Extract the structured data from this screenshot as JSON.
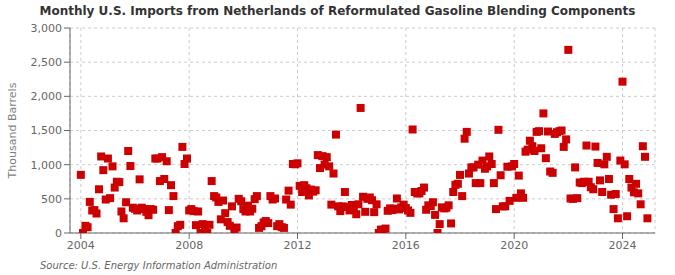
{
  "chart_data": {
    "type": "scatter",
    "title": "Monthly U.S. Imports from Netherlands of Reformulated Gasoline Blending Components",
    "ylabel": "Thousand Barrels",
    "annotations": [
      "Source: U.S. Energy Information Administration"
    ],
    "color": "#CC0000",
    "marker": "square",
    "grid": true,
    "xlim": [
      2003.6,
      2025.2
    ],
    "xticks": [
      2004,
      2008,
      2012,
      2016,
      2020,
      2024
    ],
    "ylim": [
      0,
      3000
    ],
    "yticks": [
      0,
      500,
      {
        "value": 1000,
        "label": "1,000"
      },
      {
        "value": 1500,
        "label": "1,500"
      },
      {
        "value": 2000,
        "label": "2,000"
      },
      {
        "value": 2500,
        "label": "2,500"
      },
      {
        "value": 3000,
        "label": "3,000"
      }
    ],
    "x": [
      2004.0,
      2004.08,
      2004.17,
      2004.25,
      2004.33,
      2004.42,
      2004.5,
      2004.58,
      2004.67,
      2004.75,
      2004.83,
      2004.92,
      2005.0,
      2005.08,
      2005.17,
      2005.25,
      2005.33,
      2005.42,
      2005.5,
      2005.58,
      2005.67,
      2005.75,
      2005.83,
      2005.92,
      2006.0,
      2006.08,
      2006.17,
      2006.25,
      2006.33,
      2006.42,
      2006.5,
      2006.58,
      2006.67,
      2006.75,
      2006.83,
      2006.92,
      2007.0,
      2007.08,
      2007.17,
      2007.25,
      2007.33,
      2007.42,
      2007.5,
      2007.58,
      2007.67,
      2007.75,
      2007.83,
      2007.92,
      2008.0,
      2008.08,
      2008.17,
      2008.25,
      2008.33,
      2008.42,
      2008.5,
      2008.58,
      2008.67,
      2008.75,
      2008.83,
      2008.92,
      2009.0,
      2009.08,
      2009.17,
      2009.25,
      2009.33,
      2009.42,
      2009.5,
      2009.58,
      2009.67,
      2009.75,
      2009.83,
      2009.92,
      2010.0,
      2010.08,
      2010.17,
      2010.25,
      2010.33,
      2010.42,
      2010.5,
      2010.58,
      2010.67,
      2010.75,
      2010.83,
      2010.92,
      2011.0,
      2011.08,
      2011.17,
      2011.25,
      2011.33,
      2011.42,
      2011.5,
      2011.58,
      2011.67,
      2011.75,
      2011.83,
      2011.92,
      2012.0,
      2012.08,
      2012.17,
      2012.25,
      2012.33,
      2012.42,
      2012.5,
      2012.58,
      2012.67,
      2012.75,
      2012.83,
      2012.92,
      2013.0,
      2013.08,
      2013.17,
      2013.25,
      2013.33,
      2013.42,
      2013.5,
      2013.58,
      2013.67,
      2013.75,
      2013.83,
      2013.92,
      2014.0,
      2014.08,
      2014.17,
      2014.25,
      2014.33,
      2014.42,
      2014.5,
      2014.58,
      2014.67,
      2014.75,
      2014.83,
      2014.92,
      2015.0,
      2015.08,
      2015.17,
      2015.25,
      2015.33,
      2015.42,
      2015.5,
      2015.58,
      2015.67,
      2015.75,
      2015.83,
      2015.92,
      2016.0,
      2016.08,
      2016.17,
      2016.25,
      2016.33,
      2016.42,
      2016.5,
      2016.58,
      2016.67,
      2016.75,
      2016.83,
      2016.92,
      2017.0,
      2017.08,
      2017.17,
      2017.25,
      2017.33,
      2017.42,
      2017.5,
      2017.58,
      2017.67,
      2017.75,
      2017.83,
      2017.92,
      2018.0,
      2018.08,
      2018.17,
      2018.25,
      2018.33,
      2018.42,
      2018.5,
      2018.58,
      2018.67,
      2018.75,
      2018.83,
      2018.92,
      2019.0,
      2019.08,
      2019.17,
      2019.25,
      2019.33,
      2019.42,
      2019.5,
      2019.58,
      2019.67,
      2019.75,
      2019.83,
      2019.92,
      2020.0,
      2020.08,
      2020.17,
      2020.25,
      2020.33,
      2020.42,
      2020.5,
      2020.58,
      2020.67,
      2020.75,
      2020.83,
      2020.92,
      2021.0,
      2021.08,
      2021.17,
      2021.25,
      2021.33,
      2021.42,
      2021.5,
      2021.58,
      2021.67,
      2021.75,
      2021.83,
      2021.92,
      2022.0,
      2022.08,
      2022.17,
      2022.25,
      2022.33,
      2022.42,
      2022.5,
      2022.58,
      2022.67,
      2022.75,
      2022.83,
      2022.92,
      2023.0,
      2023.08,
      2023.17,
      2023.25,
      2023.33,
      2023.42,
      2023.5,
      2023.58,
      2023.67,
      2023.75,
      2023.83,
      2023.92,
      2024.0,
      2024.08,
      2024.17,
      2024.25,
      2024.33,
      2024.42,
      2024.5,
      2024.58,
      2024.67,
      2024.75,
      2024.83,
      2024.92
    ],
    "values": [
      851,
      0,
      105,
      85,
      455,
      330,
      335,
      285,
      640,
      1120,
      920,
      490,
      1090,
      510,
      975,
      665,
      750,
      745,
      315,
      215,
      450,
      1200,
      980,
      370,
      355,
      330,
      785,
      370,
      350,
      310,
      260,
      350,
      340,
      1090,
      1090,
      760,
      1110,
      790,
      1050,
      335,
      700,
      540,
      0,
      100,
      120,
      1260,
      1010,
      1090,
      330,
      350,
      320,
      115,
      315,
      0,
      130,
      105,
      0,
      120,
      760,
      540,
      520,
      455,
      200,
      475,
      290,
      160,
      105,
      390,
      0,
      80,
      500,
      465,
      350,
      315,
      400,
      315,
      355,
      495,
      540,
      75,
      100,
      155,
      175,
      145,
      540,
      490,
      505,
      100,
      130,
      85,
      75,
      490,
      620,
      415,
      1010,
      1005,
      1020,
      690,
      600,
      700,
      655,
      550,
      635,
      605,
      625,
      1140,
      950,
      1125,
      1000,
      1110,
      975,
      415,
      870,
      1440,
      390,
      320,
      390,
      600,
      380,
      330,
      410,
      360,
      275,
      420,
      1830,
      530,
      310,
      500,
      520,
      480,
      305,
      420,
      0,
      50,
      45,
      65,
      325,
      360,
      335,
      355,
      505,
      345,
      375,
      415,
      365,
      330,
      295,
      1515,
      600,
      580,
      580,
      615,
      665,
      340,
      405,
      395,
      450,
      265,
      0,
      130,
      375,
      360,
      370,
      405,
      140,
      600,
      705,
      720,
      850,
      540,
      1380,
      1480,
      870,
      960,
      960,
      730,
      1000,
      730,
      1060,
      940,
      975,
      1120,
      1010,
      730,
      350,
      1510,
      845,
      390,
      390,
      970,
      470,
      975,
      1010,
      515,
      840,
      580,
      515,
      1190,
      1220,
      1350,
      1270,
      1200,
      1480,
      1490,
      1240,
      1750,
      1095,
      1485,
      900,
      880,
      1450,
      1475,
      1490,
      1500,
      1260,
      1370,
      2680,
      505,
      500,
      960,
      510,
      740,
      730,
      750,
      1280,
      750,
      670,
      640,
      1265,
      1025,
      770,
      600,
      1005,
      1115,
      790,
      560,
      350,
      570,
      215,
      1060,
      2215,
      1005,
      245,
      790,
      665,
      595,
      720,
      580,
      420,
      1270,
      1115,
      215
    ]
  }
}
